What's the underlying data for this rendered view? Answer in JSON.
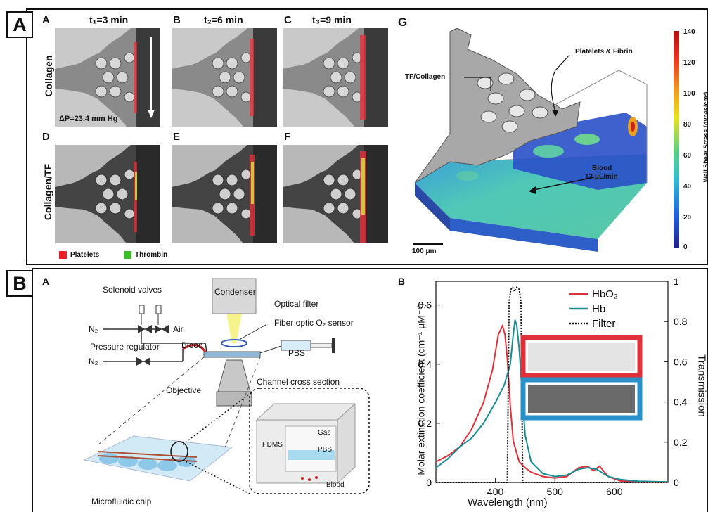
{
  "top_panel": {
    "label": "A",
    "sub_labels": [
      "A",
      "B",
      "C",
      "D",
      "E",
      "F",
      "G"
    ],
    "times": [
      "t₁=3 min",
      "t₂=6 min",
      "t₃=9 min"
    ],
    "row_labels": [
      "Collagen",
      "Collagen/TF"
    ],
    "pressure": "ΔP=23.4 mm Hg",
    "legend": [
      "Platelets",
      "Thrombin"
    ],
    "legend_colors": [
      "#e8202a",
      "#3dbb2a"
    ],
    "model": {
      "tf_label": "TF/Collagen",
      "pf_label": "Platelets & Fibrin",
      "blood_label": "Blood",
      "flow_label": "13 μL/min",
      "scale_bar": "100 μm",
      "colorbar_title": "Wall Shear Stress (dynes/cm²)",
      "colorbar_ticks": [
        "140",
        "120",
        "100",
        "80",
        "60",
        "40",
        "20",
        "0"
      ]
    }
  },
  "bottom_panel": {
    "label": "B",
    "sub_left": "A",
    "sub_right": "B",
    "schematic": {
      "solenoid": "Solenoid valves",
      "n2_top": "N₂",
      "air": "Air",
      "condenser": "Condenser",
      "optical_filter": "Optical filter",
      "fiber": "Fiber optic O₂ sensor",
      "pressure_reg": "Pressure regulator",
      "blood": "Blood",
      "n2_bottom": "N₂",
      "pbs": "PBS",
      "objective": "Objective",
      "cross_section": "Channel cross section",
      "gas": "Gas",
      "pdms": "PDMS",
      "pbs_channel": "PBS",
      "blood_cells": "Blood",
      "chip": "Microfluidic chip"
    },
    "chart_data": {
      "type": "line",
      "xlabel": "Wavelength (nm)",
      "ylabel": "Molar extinction coefficient (cm⁻¹ μM⁻¹)",
      "y2label": "Transmission",
      "xlim": [
        300,
        690
      ],
      "ylim": [
        0,
        0.68
      ],
      "y2lim": [
        0,
        1.0
      ],
      "xticks": [
        "400",
        "500",
        "600"
      ],
      "yticks": [
        "0",
        "0.2",
        "0.4",
        "0.6"
      ],
      "y2ticks": [
        "0",
        "0.2",
        "0.4",
        "0.6",
        "0.8",
        "1"
      ],
      "legend_position": "top-right",
      "series": [
        {
          "name": "HbO₂",
          "color": "#e0303a",
          "dash": "",
          "x": [
            300,
            320,
            340,
            360,
            380,
            395,
            405,
            412,
            416,
            420,
            425,
            430,
            440,
            450,
            460,
            480,
            500,
            520,
            540,
            555,
            565,
            575,
            590,
            610,
            640,
            690
          ],
          "y": [
            0.07,
            0.09,
            0.12,
            0.18,
            0.27,
            0.38,
            0.5,
            0.53,
            0.5,
            0.42,
            0.26,
            0.14,
            0.07,
            0.05,
            0.035,
            0.02,
            0.015,
            0.02,
            0.05,
            0.055,
            0.04,
            0.055,
            0.02,
            0.005,
            0.002,
            0.001
          ]
        },
        {
          "name": "Hb",
          "color": "#1a8c96",
          "dash": "",
          "x": [
            300,
            320,
            340,
            360,
            380,
            400,
            415,
            425,
            430,
            433,
            436,
            440,
            445,
            450,
            460,
            480,
            500,
            520,
            540,
            555,
            570,
            590,
            610,
            640,
            690
          ],
          "y": [
            0.05,
            0.08,
            0.12,
            0.15,
            0.2,
            0.27,
            0.33,
            0.4,
            0.5,
            0.55,
            0.53,
            0.45,
            0.3,
            0.16,
            0.07,
            0.03,
            0.02,
            0.025,
            0.045,
            0.05,
            0.045,
            0.02,
            0.01,
            0.004,
            0.002
          ]
        },
        {
          "name": "Filter",
          "color": "#111111",
          "dash": "2,2",
          "axis": "right",
          "x": [
            300,
            420,
            423,
            426,
            429,
            432,
            436,
            440,
            443,
            446,
            690
          ],
          "y": [
            0,
            0,
            0.9,
            0.96,
            0.97,
            0.95,
            0.97,
            0.96,
            0.9,
            0,
            0
          ]
        }
      ]
    }
  }
}
